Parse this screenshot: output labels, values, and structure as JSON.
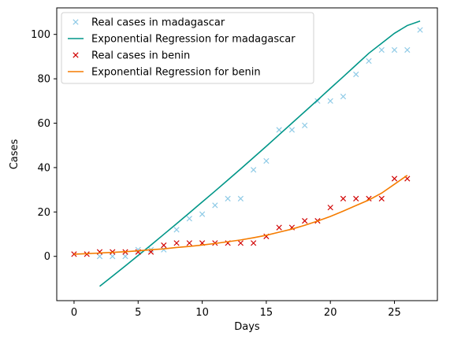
{
  "chart_data": {
    "type": "scatter",
    "xlabel": "Days",
    "ylabel": "Cases",
    "xlim": [
      -1.35,
      28.35
    ],
    "ylim": [
      -19.95,
      111.95
    ],
    "xticks": [
      0,
      5,
      10,
      15,
      20,
      25
    ],
    "yticks": [
      0,
      20,
      40,
      60,
      80,
      100
    ],
    "grid": false,
    "legend_position": "top-left",
    "series": [
      {
        "name": "Real cases in madagascar",
        "kind": "markers",
        "marker": "x",
        "color": "#8ecae6",
        "x": [
          2,
          3,
          4,
          5,
          6,
          7,
          8,
          9,
          10,
          11,
          12,
          13,
          14,
          15,
          16,
          17,
          18,
          19,
          20,
          21,
          22,
          23,
          24,
          25,
          26,
          27
        ],
        "y": [
          0,
          0,
          0,
          3,
          3,
          3,
          12,
          17,
          19,
          23,
          26,
          26,
          39,
          43,
          57,
          57,
          59,
          70,
          70,
          72,
          82,
          88,
          93,
          93,
          93,
          102
        ]
      },
      {
        "name": "Exponential Regression for madagascar",
        "kind": "line",
        "color": "#009688",
        "x": [
          2,
          3,
          4,
          5,
          6,
          7,
          8,
          9,
          10,
          11,
          12,
          13,
          14,
          15,
          16,
          17,
          18,
          19,
          20,
          21,
          22,
          23,
          24,
          25,
          26,
          27
        ],
        "y": [
          -13.5,
          -8.9,
          -4.3,
          0.4,
          5.1,
          9.9,
          14.7,
          19.6,
          24.5,
          29.4,
          34.4,
          39.4,
          44.5,
          49.6,
          54.8,
          60.0,
          65.2,
          70.4,
          75.7,
          80.9,
          86.2,
          91.5,
          96.0,
          100.5,
          104.0,
          106.0
        ]
      },
      {
        "name": "Real cases in benin",
        "kind": "markers",
        "marker": "x",
        "color": "#d00000",
        "x": [
          0,
          1,
          2,
          3,
          4,
          5,
          6,
          7,
          8,
          9,
          10,
          11,
          12,
          13,
          14,
          15,
          16,
          17,
          18,
          19,
          20,
          21,
          22,
          23,
          24,
          25,
          26
        ],
        "y": [
          1,
          1,
          2,
          2,
          2,
          2,
          2,
          5,
          6,
          6,
          6,
          6,
          6,
          6,
          6,
          9,
          13,
          13,
          16,
          16,
          22,
          26,
          26,
          26,
          26,
          35,
          35
        ]
      },
      {
        "name": "Exponential Regression for benin",
        "kind": "line",
        "color": "#f57c00",
        "x": [
          0,
          1,
          2,
          3,
          4,
          5,
          6,
          7,
          8,
          9,
          10,
          11,
          12,
          13,
          14,
          15,
          16,
          17,
          18,
          19,
          20,
          21,
          22,
          23,
          24,
          25,
          26
        ],
        "y": [
          1.0,
          1.2,
          1.5,
          1.8,
          2.1,
          2.5,
          3.0,
          3.4,
          4.0,
          4.5,
          5.1,
          5.8,
          6.6,
          7.4,
          8.4,
          9.5,
          10.9,
          12.3,
          14.0,
          15.9,
          18.0,
          20.4,
          22.9,
          25.4,
          28.5,
          32.5,
          36.5
        ]
      }
    ]
  }
}
